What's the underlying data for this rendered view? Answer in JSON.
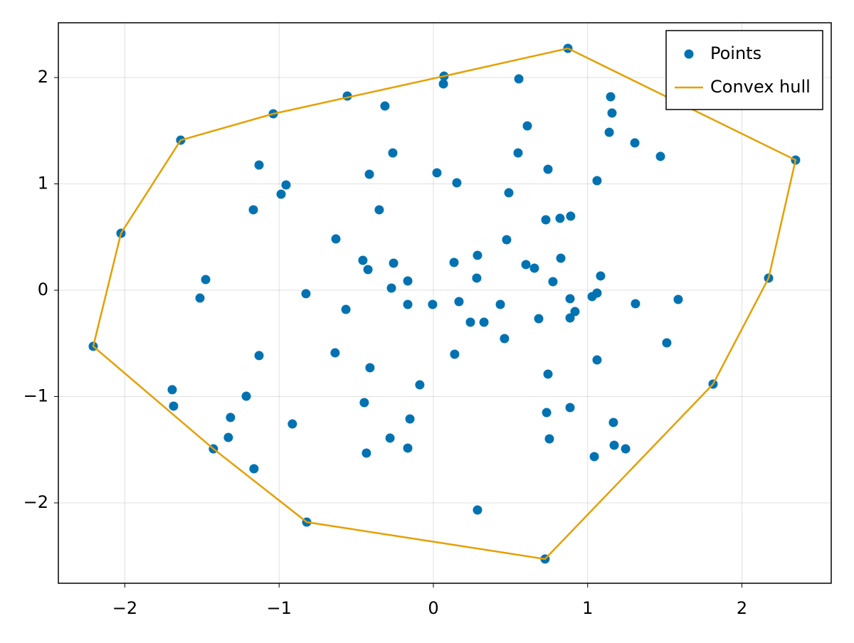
{
  "chart_data": {
    "type": "scatter",
    "xlim": [
      -2.431,
      2.579
    ],
    "ylim": [
      -2.756,
      2.515
    ],
    "xticks": [
      {
        "value": -2,
        "label": "−2"
      },
      {
        "value": -1,
        "label": "−1"
      },
      0,
      1,
      2
    ],
    "yticks": [
      {
        "value": -2,
        "label": "−2"
      },
      {
        "value": -1,
        "label": "−1"
      },
      0,
      1,
      2
    ],
    "grid": true,
    "legend": "top-right",
    "series": [
      {
        "name": "Points",
        "mode": "markers",
        "color": "#0072b2",
        "x": [
          0.872,
          0.069,
          0.065,
          0.554,
          -0.558,
          -0.314,
          -1.038,
          1.149,
          1.158,
          1.14,
          1.306,
          1.472,
          0.609,
          0.549,
          -0.263,
          -1.638,
          -1.13,
          0.743,
          -0.415,
          0.023,
          0.152,
          -0.955,
          -0.987,
          1.061,
          0.489,
          2.348,
          -0.351,
          -1.167,
          -2.025,
          0.729,
          0.821,
          0.89,
          -0.632,
          0.475,
          -0.457,
          -0.424,
          -0.258,
          0.286,
          0.134,
          0.6,
          0.655,
          0.826,
          1.084,
          0.281,
          0.775,
          -1.476,
          -1.513,
          -0.826,
          -0.272,
          -0.166,
          -0.166,
          -0.567,
          -0.005,
          0.166,
          0.434,
          0.24,
          0.328,
          1.061,
          1.029,
          0.886,
          0.918,
          0.886,
          0.683,
          1.31,
          1.587,
          2.173,
          1.513,
          0.461,
          -2.205,
          -1.13,
          -0.637,
          0.138,
          -0.411,
          1.061,
          0.743,
          -0.088,
          1.813,
          -1.693,
          -1.684,
          -1.213,
          -0.448,
          -1.315,
          -0.914,
          -0.152,
          0.734,
          0.886,
          1.167,
          -1.329,
          -0.281,
          0.752,
          -1.426,
          -0.434,
          -0.166,
          1.172,
          1.246,
          1.043,
          -1.163,
          0.286,
          -0.821,
          0.724
        ],
        "y": [
          2.274,
          2.013,
          1.94,
          1.987,
          1.826,
          1.732,
          1.659,
          1.819,
          1.666,
          1.485,
          1.385,
          1.258,
          1.545,
          1.291,
          1.291,
          1.411,
          1.177,
          1.137,
          1.09,
          1.104,
          1.01,
          0.99,
          0.903,
          1.03,
          0.916,
          1.224,
          0.756,
          0.756,
          0.535,
          0.662,
          0.676,
          0.696,
          0.482,
          0.475,
          0.281,
          0.194,
          0.254,
          0.328,
          0.261,
          0.241,
          0.207,
          0.301,
          0.134,
          0.114,
          0.08,
          0.1,
          -0.074,
          -0.033,
          0.02,
          0.087,
          -0.134,
          -0.181,
          -0.134,
          -0.107,
          -0.134,
          -0.301,
          -0.301,
          -0.027,
          -0.06,
          -0.08,
          -0.201,
          -0.261,
          -0.268,
          -0.127,
          -0.087,
          0.114,
          -0.495,
          -0.455,
          -0.528,
          -0.615,
          -0.589,
          -0.602,
          -0.729,
          -0.656,
          -0.789,
          -0.89,
          -0.883,
          -0.936,
          -1.09,
          -0.997,
          -1.057,
          -1.197,
          -1.258,
          -1.211,
          -1.151,
          -1.104,
          -1.244,
          -1.385,
          -1.391,
          -1.398,
          -1.492,
          -1.532,
          -1.485,
          -1.458,
          -1.492,
          -1.565,
          -1.679,
          -2.067,
          -2.181,
          -2.528
        ]
      },
      {
        "name": "Convex hull",
        "mode": "lines",
        "color": "#e69f00",
        "x": [
          0.872,
          2.348,
          2.173,
          1.813,
          0.724,
          -0.821,
          -1.426,
          -2.205,
          -2.025,
          -1.638,
          -1.038,
          0.069,
          0.872
        ],
        "y": [
          2.274,
          1.224,
          0.114,
          -0.883,
          -2.528,
          -2.181,
          -1.492,
          -0.528,
          0.535,
          1.411,
          1.659,
          2.013,
          2.274
        ]
      }
    ]
  }
}
